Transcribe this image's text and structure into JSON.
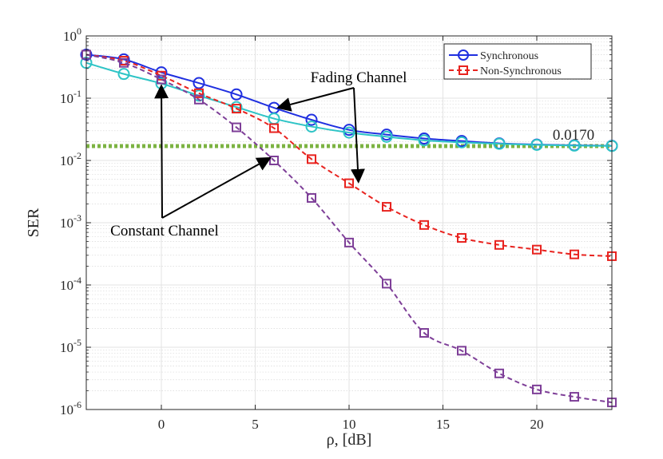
{
  "chart_data": {
    "type": "line",
    "title": "",
    "xlabel": "ρ, [dB]",
    "ylabel": "SER",
    "xlim": [
      -4,
      24
    ],
    "ylim_log10": [
      -6,
      0
    ],
    "yscale": "log",
    "grid": true,
    "minor_grid": true,
    "xticks": [
      0,
      5,
      10,
      15,
      20
    ],
    "xtick_labels": [
      "0",
      "5",
      "10",
      "15",
      "20"
    ],
    "yticks_exp": [
      0,
      -1,
      -2,
      -3,
      -4,
      -5,
      -6
    ],
    "ytick_base": "10",
    "legend_position": "top-right",
    "legend": [
      {
        "label": "Synchronous",
        "style": "solid",
        "marker": "circle",
        "color": "#1f2fe0"
      },
      {
        "label": "Non-Synchronous",
        "style": "dashed",
        "marker": "square",
        "color": "#e8231f"
      }
    ],
    "series": [
      {
        "name": "Synchronous - Fading Channel",
        "style": "solid",
        "marker": "circle",
        "color": "#1f2fe0",
        "x": [
          -4,
          -2,
          0,
          2,
          4,
          6,
          8,
          10,
          12,
          14,
          16,
          18,
          20,
          22,
          24
        ],
        "values": [
          0.5,
          0.42,
          0.26,
          0.175,
          0.115,
          0.07,
          0.045,
          0.031,
          0.026,
          0.0225,
          0.0205,
          0.0188,
          0.018,
          0.0175,
          0.0172
        ]
      },
      {
        "name": "Synchronous - Constant Channel",
        "style": "solid",
        "marker": "circle",
        "color": "#2ec4c6",
        "x": [
          -4,
          -2,
          0,
          2,
          4,
          6,
          8,
          10,
          12,
          14,
          16,
          18,
          20,
          22,
          24
        ],
        "values": [
          0.37,
          0.245,
          0.172,
          0.11,
          0.072,
          0.047,
          0.035,
          0.028,
          0.024,
          0.021,
          0.0195,
          0.0185,
          0.0178,
          0.0173,
          0.0171
        ]
      },
      {
        "name": "Non-Synchronous - Fading Channel",
        "style": "dashed",
        "marker": "square",
        "color": "#e8231f",
        "x": [
          -4,
          -2,
          0,
          2,
          4,
          6,
          8,
          10,
          12,
          14,
          16,
          18,
          20,
          22,
          24
        ],
        "values": [
          0.5,
          0.4,
          0.23,
          0.12,
          0.068,
          0.033,
          0.0105,
          0.0043,
          0.0018,
          0.00092,
          0.00057,
          0.00044,
          0.00037,
          0.00031,
          0.00029
        ]
      },
      {
        "name": "Non-Synchronous - Constant Channel",
        "style": "dashed",
        "marker": "square",
        "color": "#7e3f98",
        "x": [
          -4,
          -2,
          0,
          2,
          4,
          6,
          8,
          10,
          12,
          14,
          16,
          18,
          20,
          22,
          24
        ],
        "values": [
          0.5,
          0.37,
          0.2,
          0.095,
          0.034,
          0.01,
          0.0025,
          0.00048,
          0.000105,
          1.7e-05,
          8.8e-06,
          3.8e-06,
          2.1e-06,
          1.6e-06,
          1.3e-06
        ]
      }
    ],
    "reference_line": {
      "value": 0.017,
      "label": "0.0170",
      "color": "#7cb342",
      "style": "dotted"
    },
    "annotations": [
      {
        "text": "Fading Channel",
        "targets": [
          [
            6.2,
            0.07
          ],
          [
            10.5,
            0.0045
          ]
        ]
      },
      {
        "text": "Constant Channel",
        "targets": [
          [
            0,
            0.16
          ],
          [
            5.8,
            0.011
          ]
        ]
      }
    ]
  }
}
